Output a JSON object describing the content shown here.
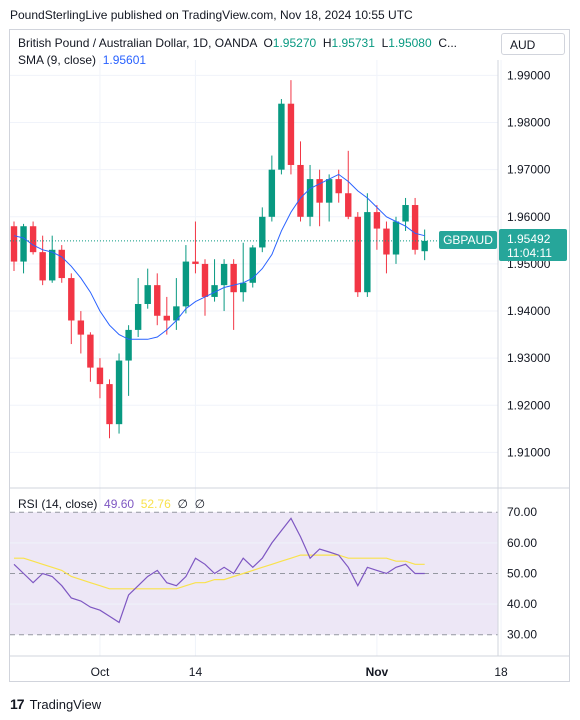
{
  "publisher_line": "PoundSterlingLive published on TradingView.com, Nov 18, 2024 10:55 UTC",
  "legend": {
    "title": "British Pound / Australian Dollar, 1D, OANDA",
    "o_label": "O",
    "o_value": "1.95270",
    "h_label": "H",
    "h_value": "1.95731",
    "l_label": "L",
    "l_value": "1.95080",
    "c_label": "C...",
    "sma_label": "SMA (9, close)",
    "sma_value": "1.95601",
    "rsi_label": "RSI (14, close)",
    "rsi_value": "49.60",
    "rsi_ma_value": "52.76",
    "na1": "∅",
    "na2": "∅"
  },
  "currency": "AUD",
  "price_tag": {
    "symbol": "GBPAUD",
    "price": "1.95492",
    "countdown": "11:04:11"
  },
  "brand": {
    "name": "TradingView",
    "mark": "17"
  },
  "colors": {
    "up": "#089981",
    "down": "#f23645",
    "sma": "#2962ff",
    "rsi": "#7e57c2",
    "rsi_ma": "#f9e24c",
    "rsi_band": "#ede7f6",
    "grid": "#f0f3fa"
  },
  "chart_data": [
    {
      "type": "candlestick",
      "title": "British Pound / Australian Dollar, 1D, OANDA",
      "ylim": [
        1.905,
        1.992
      ],
      "yticks": [
        "1.99000",
        "1.98000",
        "1.97000",
        "1.96000",
        "1.95000",
        "1.94000",
        "1.93000",
        "1.92000",
        "1.91000"
      ],
      "ytick_values": [
        1.99,
        1.98,
        1.97,
        1.96,
        1.95,
        1.94,
        1.93,
        1.92,
        1.91
      ],
      "xticks": [
        {
          "label": "Oct",
          "index": 9,
          "bold": false
        },
        {
          "label": "14",
          "index": 19,
          "bold": false
        },
        {
          "label": "Nov",
          "index": 38,
          "bold": true
        },
        {
          "label": "18",
          "index": 51,
          "bold": false
        }
      ],
      "candles": [
        {
          "o": 1.958,
          "h": 1.959,
          "l": 1.9485,
          "c": 1.9505
        },
        {
          "o": 1.9505,
          "h": 1.9585,
          "l": 1.948,
          "c": 1.958
        },
        {
          "o": 1.958,
          "h": 1.959,
          "l": 1.952,
          "c": 1.9525
        },
        {
          "o": 1.9525,
          "h": 1.956,
          "l": 1.9455,
          "c": 1.9465
        },
        {
          "o": 1.9465,
          "h": 1.956,
          "l": 1.946,
          "c": 1.953
        },
        {
          "o": 1.953,
          "h": 1.954,
          "l": 1.946,
          "c": 1.947
        },
        {
          "o": 1.947,
          "h": 1.948,
          "l": 1.933,
          "c": 1.938
        },
        {
          "o": 1.938,
          "h": 1.94,
          "l": 1.931,
          "c": 1.935
        },
        {
          "o": 1.935,
          "h": 1.9355,
          "l": 1.925,
          "c": 1.928
        },
        {
          "o": 1.928,
          "h": 1.93,
          "l": 1.9215,
          "c": 1.9245
        },
        {
          "o": 1.9245,
          "h": 1.9255,
          "l": 1.913,
          "c": 1.916
        },
        {
          "o": 1.916,
          "h": 1.931,
          "l": 1.914,
          "c": 1.9295
        },
        {
          "o": 1.9295,
          "h": 1.937,
          "l": 1.922,
          "c": 1.936
        },
        {
          "o": 1.936,
          "h": 1.947,
          "l": 1.9345,
          "c": 1.9415
        },
        {
          "o": 1.9415,
          "h": 1.949,
          "l": 1.9405,
          "c": 1.9455
        },
        {
          "o": 1.9455,
          "h": 1.948,
          "l": 1.937,
          "c": 1.939
        },
        {
          "o": 1.939,
          "h": 1.943,
          "l": 1.935,
          "c": 1.938
        },
        {
          "o": 1.938,
          "h": 1.947,
          "l": 1.936,
          "c": 1.941
        },
        {
          "o": 1.941,
          "h": 1.954,
          "l": 1.9395,
          "c": 1.9505
        },
        {
          "o": 1.9505,
          "h": 1.959,
          "l": 1.948,
          "c": 1.95
        },
        {
          "o": 1.95,
          "h": 1.951,
          "l": 1.939,
          "c": 1.943
        },
        {
          "o": 1.943,
          "h": 1.951,
          "l": 1.942,
          "c": 1.9455
        },
        {
          "o": 1.9455,
          "h": 1.951,
          "l": 1.94,
          "c": 1.95
        },
        {
          "o": 1.95,
          "h": 1.951,
          "l": 1.936,
          "c": 1.944
        },
        {
          "o": 1.944,
          "h": 1.9545,
          "l": 1.942,
          "c": 1.946
        },
        {
          "o": 1.946,
          "h": 1.954,
          "l": 1.945,
          "c": 1.9535
        },
        {
          "o": 1.9535,
          "h": 1.962,
          "l": 1.9525,
          "c": 1.96
        },
        {
          "o": 1.96,
          "h": 1.973,
          "l": 1.959,
          "c": 1.97
        },
        {
          "o": 1.97,
          "h": 1.985,
          "l": 1.969,
          "c": 1.984
        },
        {
          "o": 1.984,
          "h": 1.989,
          "l": 1.969,
          "c": 1.971
        },
        {
          "o": 1.971,
          "h": 1.976,
          "l": 1.959,
          "c": 1.96
        },
        {
          "o": 1.96,
          "h": 1.971,
          "l": 1.958,
          "c": 1.968
        },
        {
          "o": 1.968,
          "h": 1.97,
          "l": 1.958,
          "c": 1.963
        },
        {
          "o": 1.963,
          "h": 1.969,
          "l": 1.959,
          "c": 1.968
        },
        {
          "o": 1.968,
          "h": 1.97,
          "l": 1.963,
          "c": 1.965
        },
        {
          "o": 1.965,
          "h": 1.974,
          "l": 1.9595,
          "c": 1.96
        },
        {
          "o": 1.96,
          "h": 1.961,
          "l": 1.943,
          "c": 1.944
        },
        {
          "o": 1.944,
          "h": 1.965,
          "l": 1.943,
          "c": 1.961
        },
        {
          "o": 1.961,
          "h": 1.9625,
          "l": 1.953,
          "c": 1.9575
        },
        {
          "o": 1.9575,
          "h": 1.959,
          "l": 1.948,
          "c": 1.952
        },
        {
          "o": 1.952,
          "h": 1.96,
          "l": 1.95,
          "c": 1.959
        },
        {
          "o": 1.959,
          "h": 1.964,
          "l": 1.957,
          "c": 1.9625
        },
        {
          "o": 1.9625,
          "h": 1.964,
          "l": 1.952,
          "c": 1.953
        },
        {
          "o": 1.9527,
          "h": 1.9573,
          "l": 1.9508,
          "c": 1.9549
        }
      ]
    },
    {
      "type": "line",
      "name": "SMA (9, close)",
      "series": [
        {
          "name": "SMA (9, close)",
          "index_start": 0,
          "values": [
            1.956,
            1.9555,
            1.954,
            1.953,
            1.9525,
            1.9515,
            1.9495,
            1.947,
            1.944,
            1.94,
            1.937,
            1.935,
            1.934,
            1.934,
            1.934,
            1.9345,
            1.936,
            1.938,
            1.9405,
            1.942,
            1.943,
            1.944,
            1.945,
            1.9455,
            1.946,
            1.947,
            1.949,
            1.952,
            1.957,
            1.961,
            1.964,
            1.966,
            1.967,
            1.968,
            1.969,
            1.9675,
            1.9655,
            1.964,
            1.962,
            1.96,
            1.959,
            1.958,
            1.9565,
            1.956
          ]
        }
      ]
    },
    {
      "type": "line",
      "name": "RSI (14, close)",
      "ylim": [
        25,
        74
      ],
      "yticks": [
        "70.00",
        "60.00",
        "50.00",
        "40.00",
        "30.00"
      ],
      "ytick_values": [
        70,
        60,
        50,
        40,
        30
      ],
      "band": [
        30,
        70
      ],
      "series": [
        {
          "name": "RSI",
          "values": [
            53,
            50,
            47,
            50,
            49,
            46,
            42,
            41,
            39,
            38,
            36,
            34,
            43,
            46,
            49,
            51,
            47,
            46,
            49,
            55,
            53,
            50,
            52,
            50,
            55,
            52,
            55,
            60,
            64,
            68,
            62,
            55,
            58,
            57,
            56,
            52,
            46,
            52,
            51,
            50,
            52,
            53,
            50,
            50
          ]
        },
        {
          "name": "RSI MA",
          "values": [
            55,
            55,
            54,
            53,
            52,
            51,
            49,
            48,
            47,
            46,
            45,
            45,
            45,
            45,
            45,
            45,
            45,
            45,
            46,
            47,
            47,
            48,
            48,
            49,
            50,
            51,
            52,
            53,
            54,
            55,
            56,
            56,
            56,
            56,
            56,
            55,
            55,
            55,
            55,
            55,
            54,
            54,
            53,
            53
          ]
        }
      ]
    }
  ]
}
